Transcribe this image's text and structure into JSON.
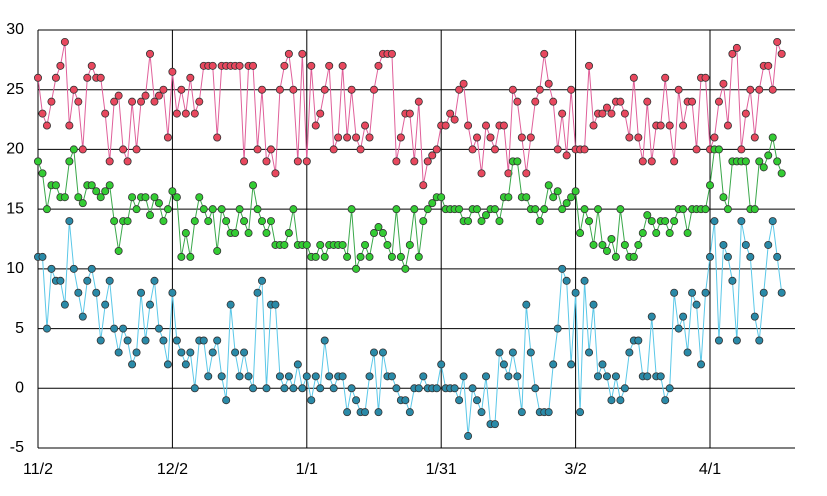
{
  "chart_data": {
    "type": "line",
    "categories": [
      "11/2",
      null,
      null,
      null,
      null,
      null,
      null,
      null,
      null,
      null,
      null,
      null,
      null,
      null,
      null,
      null,
      null,
      null,
      null,
      null,
      null,
      null,
      null,
      null,
      null,
      null,
      null,
      null,
      null,
      null,
      "12/2",
      null,
      null,
      null,
      null,
      null,
      null,
      null,
      null,
      null,
      null,
      null,
      null,
      null,
      null,
      null,
      null,
      null,
      null,
      null,
      null,
      null,
      null,
      null,
      null,
      null,
      null,
      null,
      null,
      null,
      "1/1",
      null,
      null,
      null,
      null,
      null,
      null,
      null,
      null,
      null,
      null,
      null,
      null,
      null,
      null,
      null,
      null,
      null,
      null,
      null,
      null,
      null,
      null,
      null,
      null,
      null,
      null,
      null,
      null,
      null,
      "1/31",
      null,
      null,
      null,
      null,
      null,
      null,
      null,
      null,
      null,
      null,
      null,
      null,
      null,
      null,
      null,
      null,
      null,
      null,
      null,
      null,
      null,
      null,
      null,
      null,
      null,
      null,
      null,
      null,
      null,
      "3/2",
      null,
      null,
      null,
      null,
      null,
      null,
      null,
      null,
      null,
      null,
      null,
      null,
      null,
      null,
      null,
      null,
      null,
      null,
      null,
      null,
      null,
      null,
      null,
      null,
      null,
      null,
      null,
      null,
      null,
      "4/1",
      null,
      null,
      null,
      null,
      null,
      null,
      null,
      null,
      null,
      null,
      null,
      null,
      null,
      null,
      null,
      null
    ],
    "series": [
      {
        "color": "#e8485e",
        "line_color": "#e0609a",
        "values": [
          26,
          23,
          22,
          24,
          26,
          27,
          29,
          22,
          25,
          24,
          20,
          26,
          27,
          26,
          26,
          23,
          19,
          24,
          24.5,
          20,
          19,
          24,
          20,
          24,
          24.5,
          28,
          24,
          24.5,
          25,
          21,
          26.5,
          23,
          25,
          23,
          26,
          23,
          24,
          27,
          27,
          27,
          21,
          27,
          27,
          27,
          27,
          27,
          19,
          27,
          27,
          20,
          25,
          19,
          20,
          18,
          25,
          27,
          28,
          25,
          19,
          28,
          19,
          27,
          22,
          23,
          25,
          27,
          20,
          21,
          27,
          21,
          25,
          21,
          20,
          22,
          21,
          25,
          27,
          28,
          28,
          28,
          19,
          21,
          23,
          23,
          19,
          24,
          17,
          19,
          19.5,
          20,
          22,
          22,
          23,
          22.5,
          25,
          25.5,
          22,
          20,
          21,
          18,
          22,
          21,
          20,
          22,
          22,
          18,
          25,
          24,
          21,
          18,
          21,
          24,
          25,
          28,
          25.5,
          24,
          20,
          23,
          19.5,
          25,
          20,
          20,
          20,
          27,
          22,
          23,
          23,
          23.5,
          23,
          24,
          24,
          23,
          21,
          26,
          21,
          19,
          24,
          19,
          22,
          22,
          26,
          22,
          19,
          25,
          22,
          24,
          24,
          20,
          26,
          26,
          20,
          21,
          24,
          25.5,
          22,
          28,
          28.5,
          20,
          23,
          25,
          21,
          25,
          27,
          27,
          25,
          29,
          28
        ]
      },
      {
        "color": "#33cc33",
        "line_color": "#3aa84a",
        "values": [
          19,
          18,
          15,
          17,
          17,
          16,
          16,
          19,
          20,
          16,
          15.5,
          17,
          17,
          16.5,
          16,
          16.5,
          17,
          14,
          11.5,
          14,
          14,
          16,
          15,
          16,
          16,
          14.5,
          16,
          15.5,
          14,
          15,
          16.5,
          16,
          11,
          13,
          11,
          14,
          16,
          15,
          14,
          15,
          11.5,
          15,
          14,
          13,
          13,
          15,
          14,
          13,
          17,
          15,
          14,
          13,
          14,
          12,
          12,
          12,
          13,
          15,
          12,
          12,
          12,
          11,
          11,
          12,
          11,
          12,
          12,
          12,
          12,
          11,
          15,
          10,
          11,
          12,
          11,
          13,
          13.5,
          13,
          12,
          11,
          15,
          11,
          10,
          12,
          15,
          11,
          14,
          15,
          15.5,
          16,
          16,
          15,
          15,
          15,
          15,
          14,
          14,
          15,
          15,
          14,
          14.5,
          15,
          15,
          14,
          16,
          16,
          19,
          19,
          16,
          16,
          15,
          15,
          14,
          15,
          17,
          16,
          16.5,
          15,
          15.5,
          16,
          16.5,
          13,
          15,
          14,
          12,
          15,
          12,
          11.5,
          12.5,
          11,
          15,
          12,
          11,
          11,
          12,
          13,
          14.5,
          14,
          13,
          14,
          14,
          13,
          14,
          15,
          15,
          13,
          15,
          15,
          15,
          15,
          17,
          20,
          20,
          16,
          15,
          19,
          19,
          19,
          19,
          15,
          15,
          19,
          18.5,
          19.5,
          21,
          19,
          18
        ]
      },
      {
        "color": "#2a8aa8",
        "line_color": "#5bc8e8",
        "values": [
          11,
          11,
          5,
          10,
          9,
          9,
          7,
          14,
          10,
          8,
          6,
          9,
          10,
          8,
          4,
          7,
          9,
          5,
          3,
          5,
          4,
          2,
          3,
          8,
          4,
          7,
          9,
          5,
          4,
          2,
          8,
          4,
          3,
          2,
          3,
          0,
          4,
          4,
          1,
          3,
          4,
          1,
          -1,
          7,
          3,
          1,
          3,
          1,
          0,
          8,
          9,
          0,
          7,
          7,
          1,
          0,
          1,
          0,
          2,
          0,
          1,
          -1,
          1,
          0,
          4,
          1,
          0,
          1,
          1,
          -2,
          0,
          -1,
          -2,
          -2,
          1,
          3,
          -2,
          3,
          1,
          1,
          0,
          -1,
          -1,
          -2,
          0,
          0,
          1,
          0,
          0,
          0,
          2,
          0,
          0,
          0,
          -1,
          1,
          -4,
          0,
          -1,
          -2,
          1,
          -3,
          -3,
          3,
          2,
          1,
          3,
          1,
          -2,
          7,
          3,
          0,
          -2,
          -2,
          -2,
          2,
          5,
          10,
          9,
          2,
          8,
          -2,
          9,
          3,
          7,
          1,
          2,
          1,
          -1,
          1,
          -1,
          0,
          3,
          4,
          4,
          1,
          1,
          6,
          1,
          1,
          -1,
          0,
          8,
          5,
          6,
          3,
          8,
          7,
          2,
          8,
          11,
          14,
          4,
          12,
          11,
          9,
          4,
          14,
          12,
          11,
          6,
          4,
          8,
          12,
          14,
          11,
          8
        ]
      }
    ],
    "ylim": [
      -5,
      30
    ],
    "yticks": [
      -5,
      0,
      5,
      10,
      15,
      20,
      25,
      30
    ],
    "grid": true
  }
}
